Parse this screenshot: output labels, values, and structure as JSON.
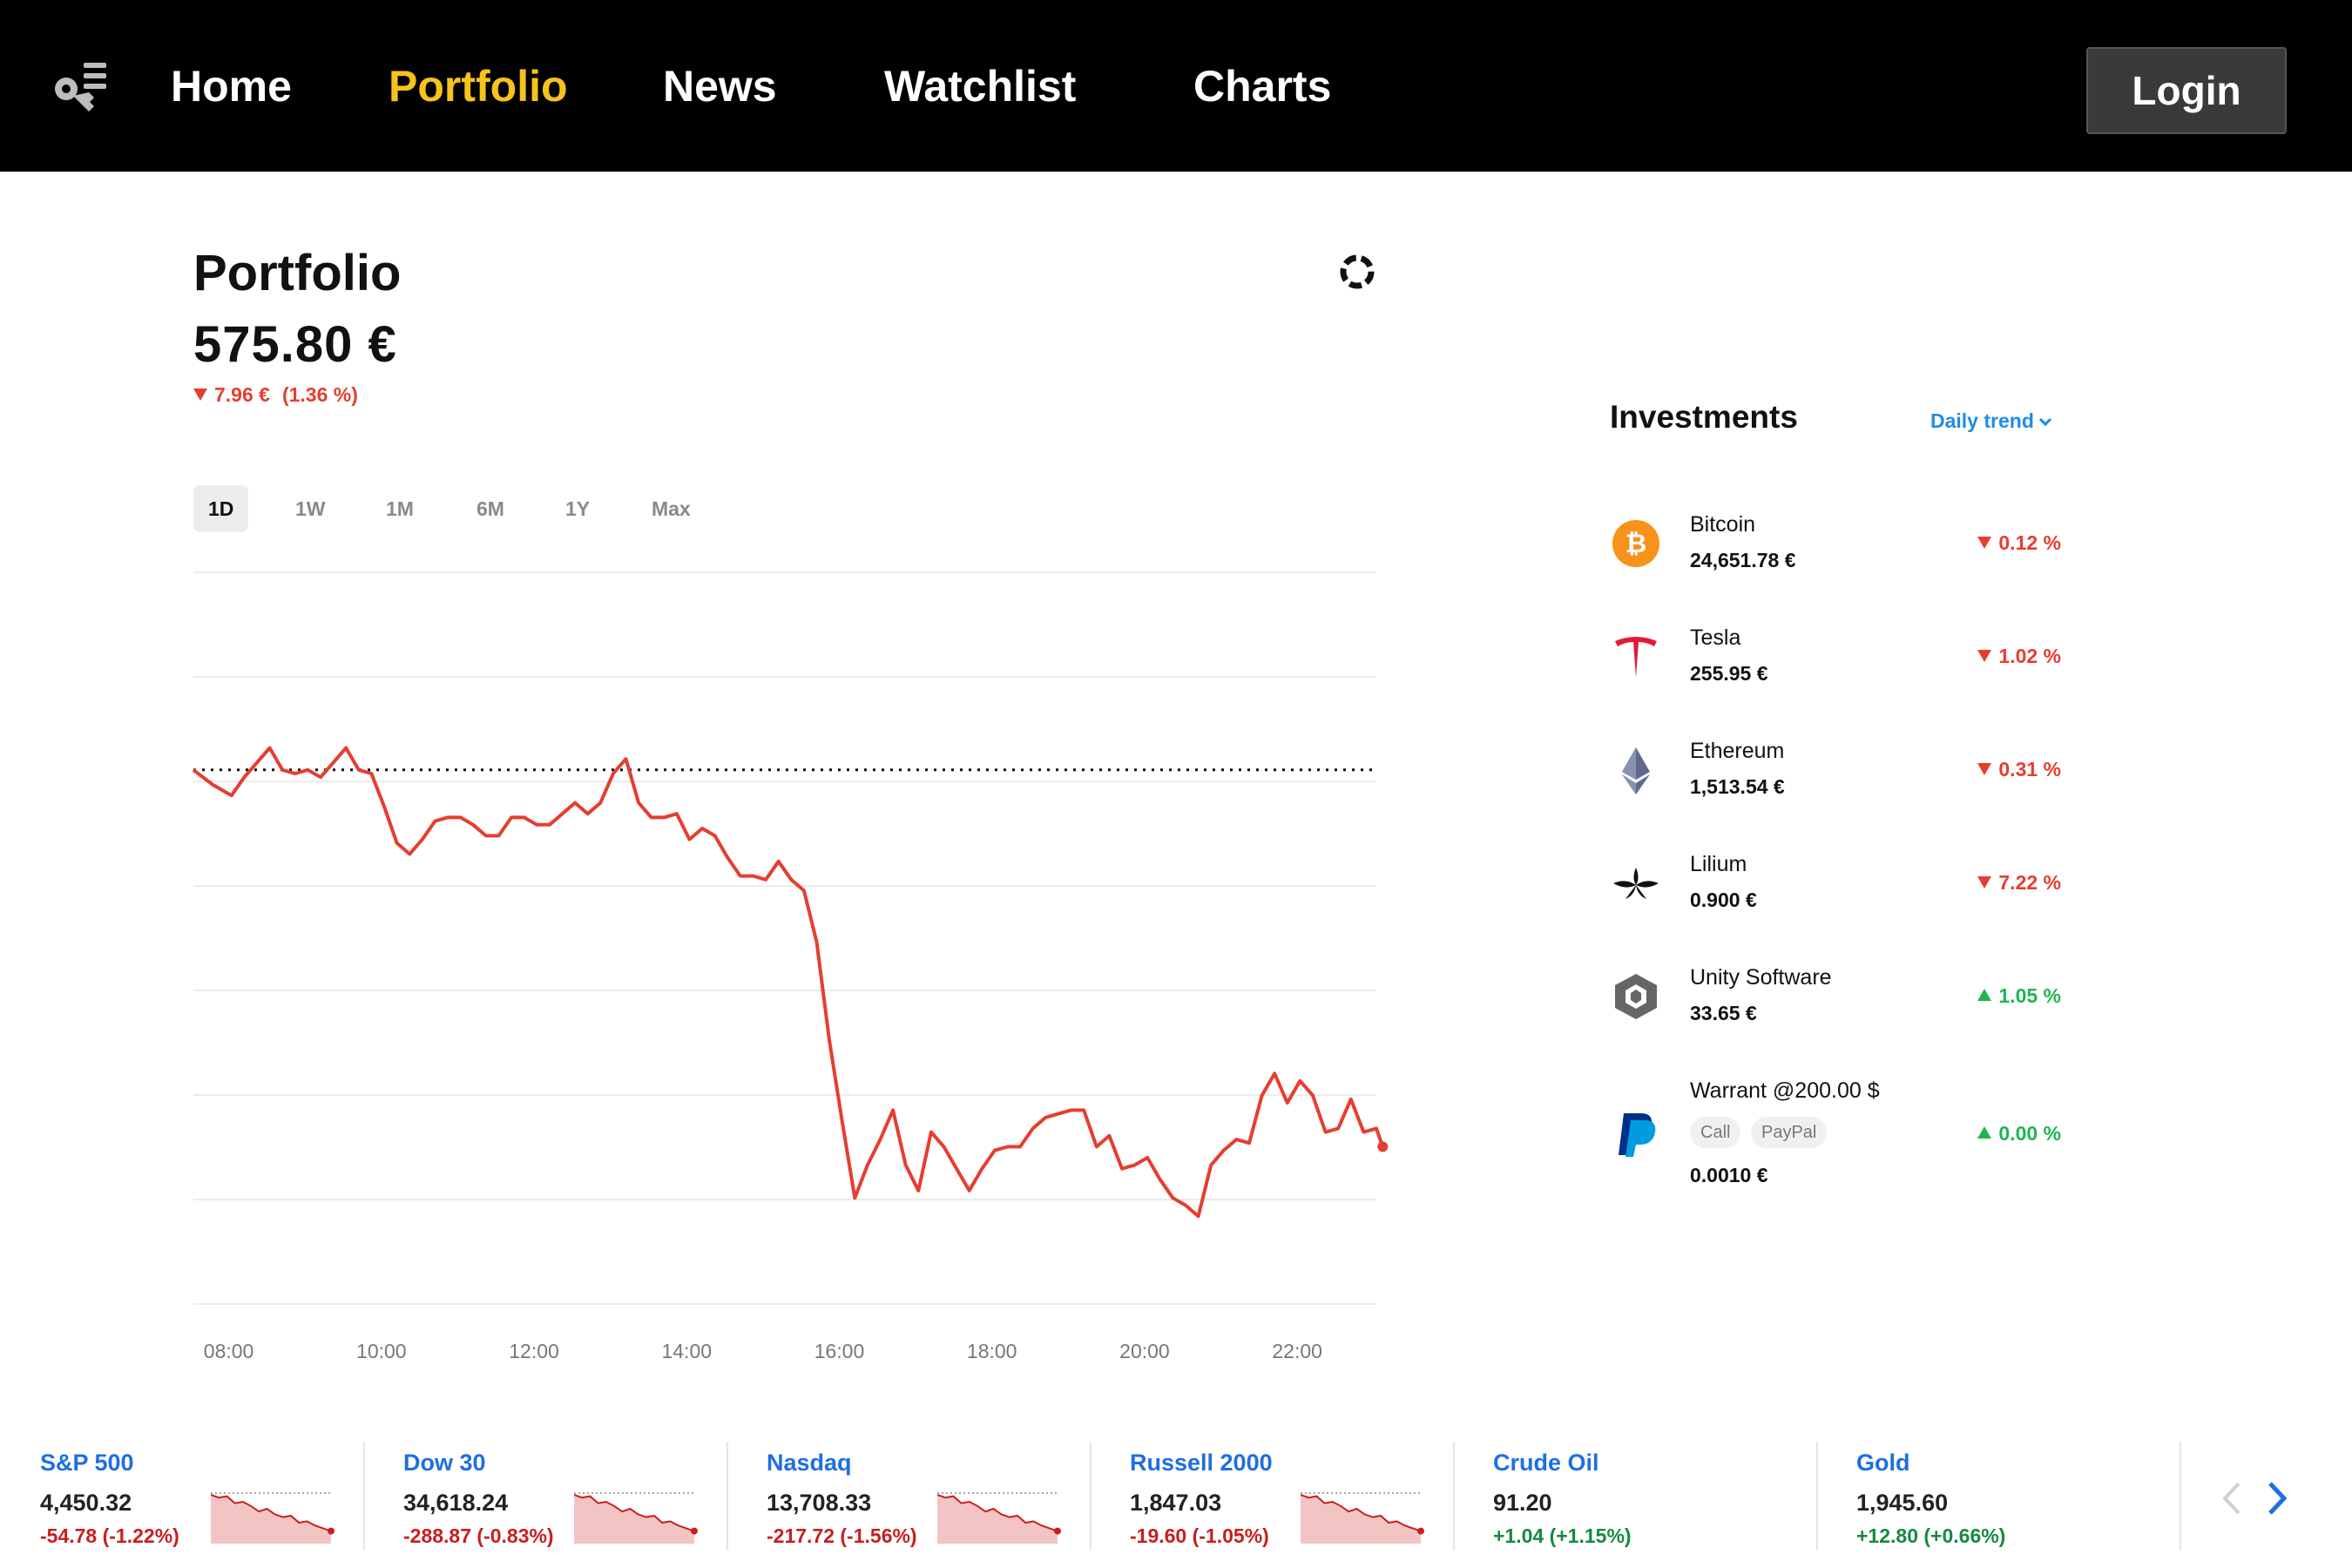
{
  "nav": {
    "links": [
      {
        "label": "Home",
        "active": false
      },
      {
        "label": "Portfolio",
        "active": true
      },
      {
        "label": "News",
        "active": false
      },
      {
        "label": "Watchlist",
        "active": false
      },
      {
        "label": "Charts",
        "active": false
      }
    ],
    "login_label": "Login",
    "active_color": "#f6c21c"
  },
  "portfolio": {
    "title": "Portfolio",
    "value": "575.80 €",
    "change_abs": "7.96 €",
    "change_pct": "(1.36 %)",
    "direction": "down"
  },
  "range_tabs": [
    {
      "label": "1D",
      "active": true
    },
    {
      "label": "1W",
      "active": false
    },
    {
      "label": "1M",
      "active": false
    },
    {
      "label": "6M",
      "active": false
    },
    {
      "label": "1Y",
      "active": false
    },
    {
      "label": "Max",
      "active": false
    }
  ],
  "chart_data": {
    "type": "line",
    "title": "",
    "xlabel": "",
    "ylabel": "",
    "x_ticks": [
      "08:00",
      "10:00",
      "12:00",
      "14:00",
      "16:00",
      "18:00",
      "20:00",
      "22:00"
    ],
    "xlim": [
      "07:30",
      "23:00"
    ],
    "ylim": [
      0,
      100
    ],
    "grid": true,
    "line_color": "#e53e30",
    "baseline": 73.0,
    "series": [
      {
        "values": [
          [
            "07:30",
            73.0
          ],
          [
            "07:45",
            71.0
          ],
          [
            "07:55",
            70.0
          ],
          [
            "08:00",
            69.5
          ],
          [
            "08:10",
            72.0
          ],
          [
            "08:20",
            74.0
          ],
          [
            "08:30",
            76.0
          ],
          [
            "08:40",
            73.0
          ],
          [
            "08:50",
            72.5
          ],
          [
            "09:00",
            73.0
          ],
          [
            "09:10",
            72.0
          ],
          [
            "09:20",
            74.0
          ],
          [
            "09:30",
            76.0
          ],
          [
            "09:40",
            73.0
          ],
          [
            "09:50",
            72.5
          ],
          [
            "10:00",
            68.0
          ],
          [
            "10:10",
            63.0
          ],
          [
            "10:20",
            61.5
          ],
          [
            "10:30",
            63.5
          ],
          [
            "10:40",
            66.0
          ],
          [
            "10:50",
            66.5
          ],
          [
            "11:00",
            66.5
          ],
          [
            "11:10",
            65.5
          ],
          [
            "11:20",
            64.0
          ],
          [
            "11:30",
            64.0
          ],
          [
            "11:40",
            66.5
          ],
          [
            "11:50",
            66.5
          ],
          [
            "12:00",
            65.5
          ],
          [
            "12:10",
            65.5
          ],
          [
            "12:20",
            67.0
          ],
          [
            "12:30",
            68.5
          ],
          [
            "12:40",
            67.0
          ],
          [
            "12:50",
            68.5
          ],
          [
            "13:00",
            72.5
          ],
          [
            "13:10",
            74.5
          ],
          [
            "13:20",
            68.5
          ],
          [
            "13:30",
            66.5
          ],
          [
            "13:40",
            66.5
          ],
          [
            "13:50",
            67.0
          ],
          [
            "14:00",
            63.5
          ],
          [
            "14:10",
            65.0
          ],
          [
            "14:20",
            64.0
          ],
          [
            "14:30",
            61.0
          ],
          [
            "14:40",
            58.5
          ],
          [
            "14:50",
            58.5
          ],
          [
            "15:00",
            58.0
          ],
          [
            "15:10",
            60.5
          ],
          [
            "15:20",
            58.0
          ],
          [
            "15:30",
            56.5
          ],
          [
            "15:40",
            49.5
          ],
          [
            "15:50",
            36.0
          ],
          [
            "16:00",
            25.0
          ],
          [
            "16:10",
            14.5
          ],
          [
            "16:20",
            19.0
          ],
          [
            "16:30",
            22.5
          ],
          [
            "16:40",
            26.5
          ],
          [
            "16:50",
            19.0
          ],
          [
            "17:00",
            15.5
          ],
          [
            "17:10",
            23.5
          ],
          [
            "17:20",
            21.5
          ],
          [
            "17:30",
            18.5
          ],
          [
            "17:40",
            15.5
          ],
          [
            "17:50",
            18.5
          ],
          [
            "18:00",
            21.0
          ],
          [
            "18:10",
            21.5
          ],
          [
            "18:20",
            21.5
          ],
          [
            "18:30",
            24.0
          ],
          [
            "18:40",
            25.5
          ],
          [
            "18:50",
            26.0
          ],
          [
            "19:00",
            26.5
          ],
          [
            "19:10",
            26.5
          ],
          [
            "19:20",
            21.5
          ],
          [
            "19:30",
            23.0
          ],
          [
            "19:40",
            18.5
          ],
          [
            "19:50",
            19.0
          ],
          [
            "20:00",
            20.0
          ],
          [
            "20:10",
            17.0
          ],
          [
            "20:20",
            14.5
          ],
          [
            "20:30",
            13.5
          ],
          [
            "20:40",
            12.0
          ],
          [
            "20:50",
            19.0
          ],
          [
            "21:00",
            21.0
          ],
          [
            "21:10",
            22.5
          ],
          [
            "21:20",
            22.0
          ],
          [
            "21:30",
            28.5
          ],
          [
            "21:40",
            31.5
          ],
          [
            "21:50",
            27.5
          ],
          [
            "22:00",
            30.5
          ],
          [
            "22:10",
            28.5
          ],
          [
            "22:20",
            23.5
          ],
          [
            "22:30",
            24.0
          ],
          [
            "22:40",
            28.0
          ],
          [
            "22:50",
            23.5
          ],
          [
            "23:00",
            24.0
          ],
          [
            "23:05",
            21.5
          ]
        ]
      }
    ]
  },
  "investments": {
    "title": "Investments",
    "trend_label": "Daily trend",
    "items": [
      {
        "name": "Bitcoin",
        "price": "24,651.78 €",
        "change": "0.12 %",
        "direction": "down",
        "icon": "bitcoin-icon"
      },
      {
        "name": "Tesla",
        "price": "255.95 €",
        "change": "1.02 %",
        "direction": "down",
        "icon": "tesla-icon"
      },
      {
        "name": "Ethereum",
        "price": "1,513.54 €",
        "change": "0.31 %",
        "direction": "down",
        "icon": "ethereum-icon"
      },
      {
        "name": "Lilium",
        "price": "0.900 €",
        "change": "7.22 %",
        "direction": "down",
        "icon": "lilium-icon"
      },
      {
        "name": "Unity Software",
        "price": "33.65 €",
        "change": "1.05 %",
        "direction": "up",
        "icon": "unity-icon"
      },
      {
        "name": "Warrant @200.00 $",
        "price": "0.0010 €",
        "change": "0.00 %",
        "direction": "up",
        "icon": "paypal-icon",
        "tags": [
          "Call",
          "PayPal"
        ]
      }
    ]
  },
  "markets": [
    {
      "name": "S&P 500",
      "price": "4,450.32",
      "change": "-54.78 (-1.22%)",
      "direction": "down"
    },
    {
      "name": "Dow 30",
      "price": "34,618.24",
      "change": "-288.87 (-0.83%)",
      "direction": "down"
    },
    {
      "name": "Nasdaq",
      "price": "13,708.33",
      "change": "-217.72 (-1.56%)",
      "direction": "down"
    },
    {
      "name": "Russell 2000",
      "price": "1,847.03",
      "change": "-19.60 (-1.05%)",
      "direction": "down"
    },
    {
      "name": "Crude Oil",
      "price": "91.20",
      "change": "+1.04 (+1.15%)",
      "direction": "up"
    },
    {
      "name": "Gold",
      "price": "1,945.60",
      "change": "+12.80 (+0.66%)",
      "direction": "up"
    }
  ],
  "colors": {
    "down": "#e53e30",
    "up": "#1fb552",
    "link": "#1e8ce8"
  }
}
